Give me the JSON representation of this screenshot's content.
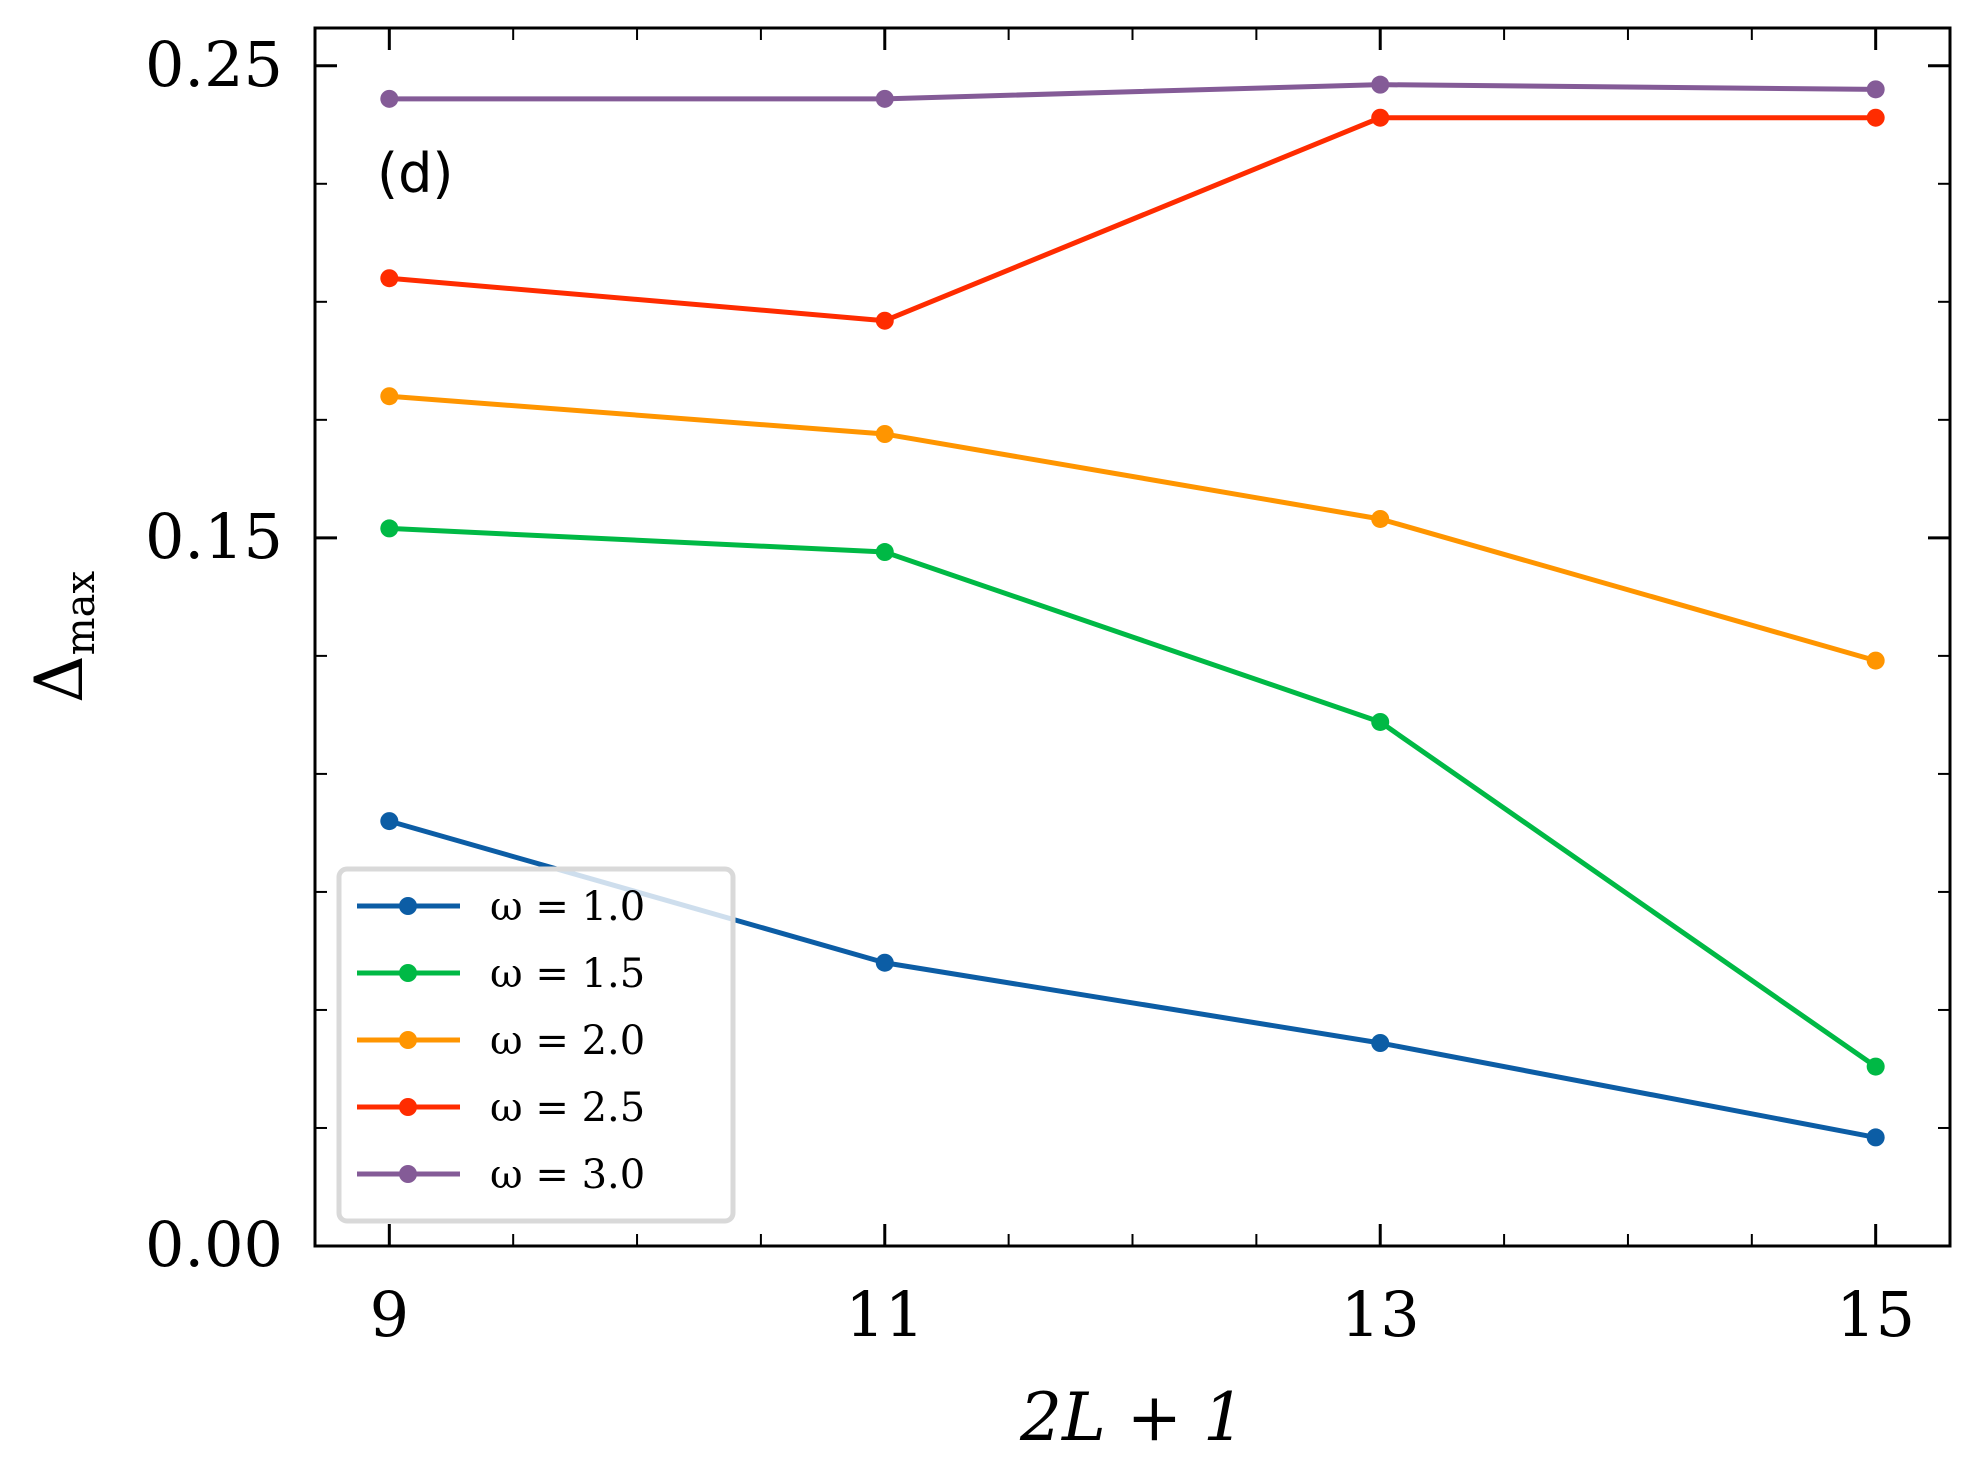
{
  "chart_data": {
    "type": "line",
    "panel_label": "(d)",
    "xlabel": "2L + 1",
    "ylabel": "Δ",
    "ylabel_sub": "max",
    "xlim": [
      8.7,
      15.3
    ],
    "ylim": [
      0.0,
      0.258
    ],
    "x_ticks": [
      9,
      11,
      13,
      15
    ],
    "x_tick_labels": [
      "9",
      "11",
      "13",
      "15"
    ],
    "y_ticks": [
      0.0,
      0.15,
      0.25
    ],
    "y_tick_labels": [
      "0.00",
      "0.15",
      "0.25"
    ],
    "x": [
      9,
      11,
      13,
      15
    ],
    "grid": false,
    "legend_position": "lower-left",
    "series": [
      {
        "name": "ω = 1.0",
        "color": "#0C5DA5",
        "values": [
          0.09,
          0.06,
          0.043,
          0.023
        ]
      },
      {
        "name": "ω = 1.5",
        "color": "#00B945",
        "values": [
          0.152,
          0.147,
          0.111,
          0.038
        ]
      },
      {
        "name": "ω = 2.0",
        "color": "#FF9500",
        "values": [
          0.18,
          0.172,
          0.154,
          0.124
        ]
      },
      {
        "name": "ω = 2.5",
        "color": "#FF2C00",
        "values": [
          0.205,
          0.196,
          0.239,
          0.239
        ]
      },
      {
        "name": "ω = 3.0",
        "color": "#845B97",
        "values": [
          0.243,
          0.243,
          0.246,
          0.245
        ]
      }
    ]
  }
}
